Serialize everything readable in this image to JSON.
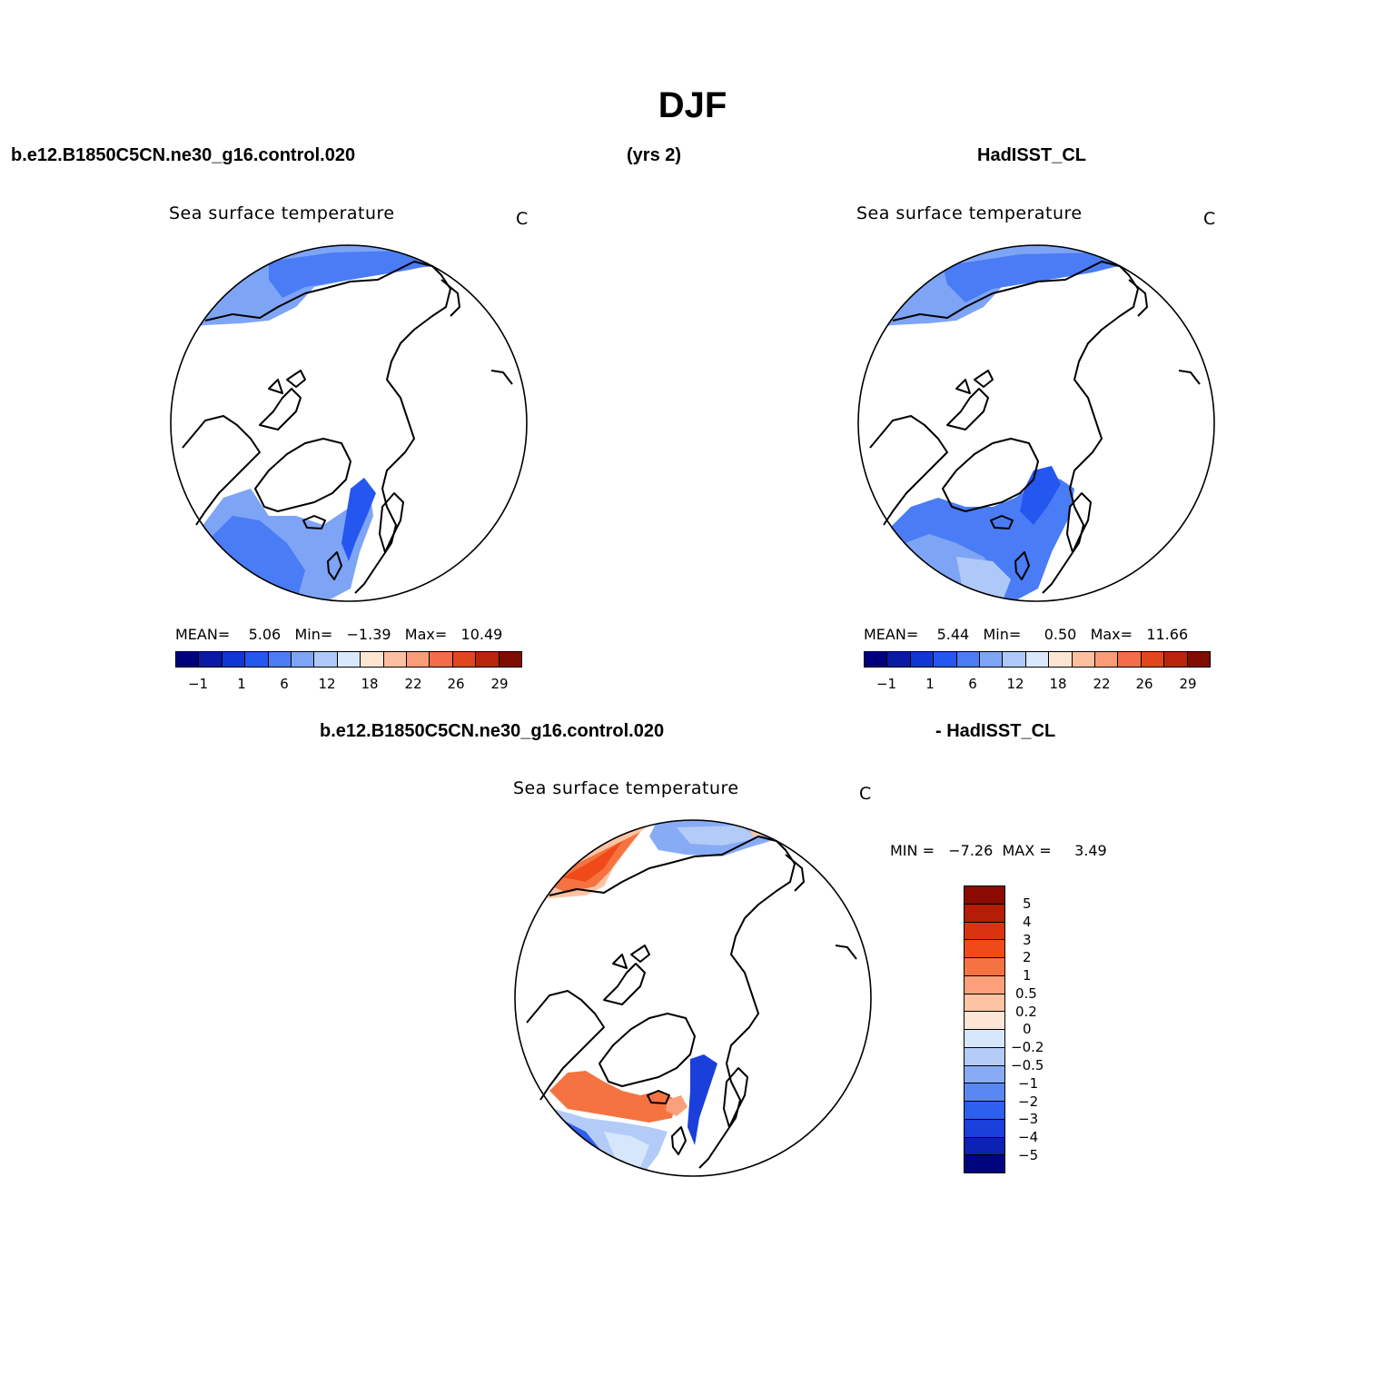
{
  "figure": {
    "title": "DJF",
    "left_header": "b.e12.B1850C5CN.ne30_g16.control.020",
    "center_header": "(yrs 2)",
    "right_header": "HadISST_CL"
  },
  "panels": [
    {
      "id": "model",
      "title": "Sea surface temperature",
      "units": "C",
      "stats": "MEAN=    5.06   Min=   −1.39   Max=   10.49",
      "mean": 5.06,
      "min": -1.39,
      "max": 10.49
    },
    {
      "id": "obs",
      "title": "Sea surface temperature",
      "units": "C",
      "stats": "MEAN=    5.44   Min=     0.50   Max=   11.66",
      "mean": 5.44,
      "min": 0.5,
      "max": 11.66
    }
  ],
  "diff": {
    "header_left": "b.e12.B1850C5CN.ne30_g16.control.020",
    "header_right": "- HadISST_CL",
    "title": "Sea surface temperature",
    "units": "C",
    "stats": "MIN =   −7.26  MAX =     3.49",
    "min": -7.26,
    "max": 3.49
  },
  "colorbar_main": {
    "colors": [
      "#00007f",
      "#0a1aa6",
      "#1236d4",
      "#2456f0",
      "#4a7cf5",
      "#7ea4f6",
      "#aec8f7",
      "#d9e8fb",
      "#fde5d2",
      "#fcc0a0",
      "#f99c78",
      "#f36d48",
      "#e1461e",
      "#b8250c",
      "#7f0c00"
    ],
    "tick_labels": [
      "−1",
      "1",
      "6",
      "12",
      "18",
      "22",
      "26",
      "29"
    ]
  },
  "colorbar_diff": {
    "colors_top_to_bottom": [
      "#8b0a02",
      "#b51d07",
      "#d9340d",
      "#f04a1a",
      "#f57340",
      "#fba07a",
      "#fcc4a5",
      "#fde6d6",
      "#d6e6fb",
      "#b3cbf7",
      "#88abf5",
      "#5a88f3",
      "#2e60ef",
      "#1a3fdb",
      "#0c22b3",
      "#00047f"
    ],
    "tick_labels_top_to_bottom": [
      "5",
      "4",
      "3",
      "2",
      "1",
      "0.5",
      "0.2",
      "0",
      "−0.2",
      "−0.5",
      "−1",
      "−2",
      "−3",
      "−4",
      "−5"
    ]
  }
}
